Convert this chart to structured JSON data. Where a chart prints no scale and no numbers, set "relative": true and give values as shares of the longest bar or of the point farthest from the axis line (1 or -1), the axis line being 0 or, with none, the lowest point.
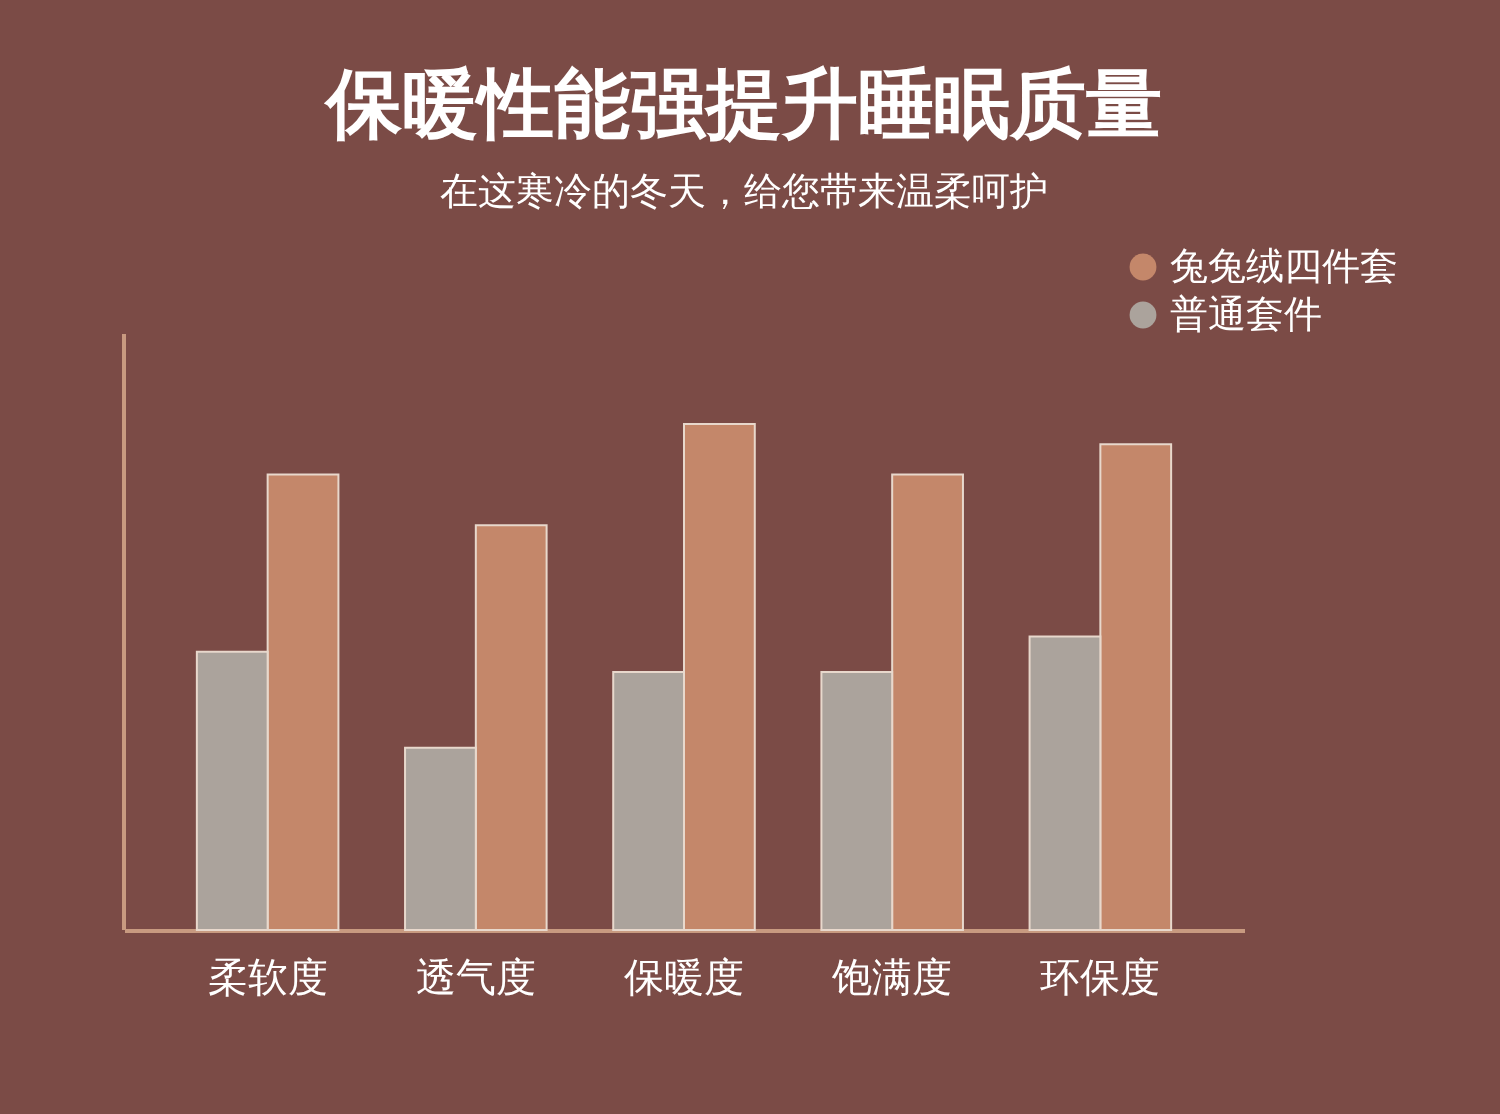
{
  "chart_data": {
    "type": "bar",
    "title": "保暖性能强提升睡眠质量",
    "subtitle": "在这寒冷的冬天，给您带来温柔呵护",
    "categories": [
      "柔软度",
      "透气度",
      "保暖度",
      "饱满度",
      "环保度"
    ],
    "relative": true,
    "grid": false,
    "legend": "top right",
    "series": [
      {
        "name": "兔兔绒四件套",
        "color": "#c4876a",
        "values": [
          0.9,
          0.8,
          1,
          0.9,
          0.96
        ]
      },
      {
        "name": "普通套件",
        "color": "#aba39c",
        "values": [
          0.55,
          0.36,
          0.51,
          0.51,
          0.58
        ]
      }
    ]
  }
}
